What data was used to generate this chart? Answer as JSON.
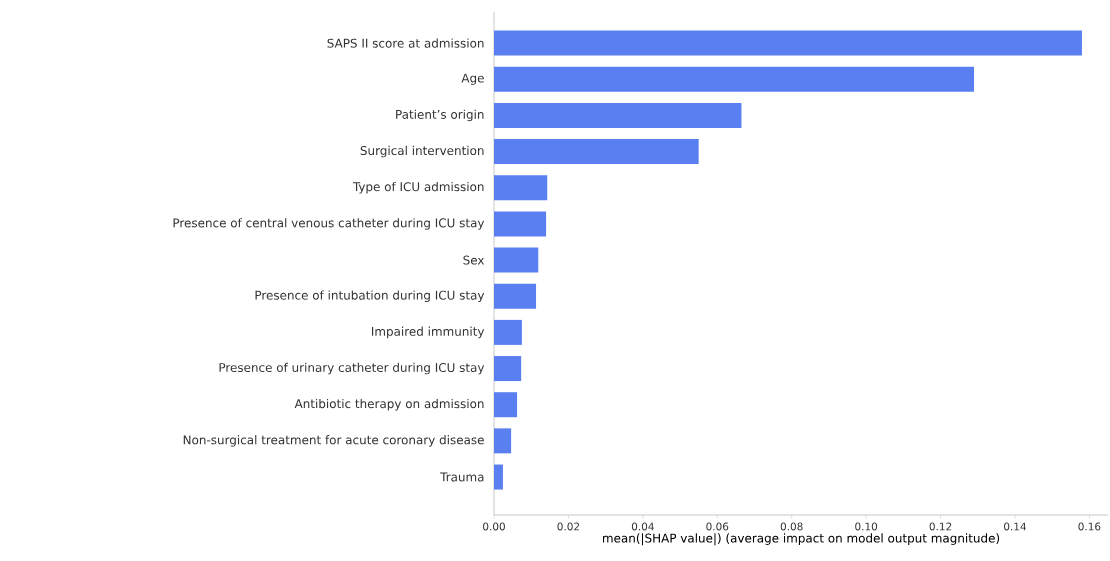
{
  "chart_data": {
    "type": "bar",
    "orientation": "horizontal",
    "xlabel": "mean(|SHAP value|) (average impact on model output magnitude)",
    "categories": [
      "SAPS II score at admission",
      "Age",
      "Patient’s origin",
      "Surgical intervention",
      "Type of ICU admission",
      "Presence of central venous catheter during ICU stay",
      "Sex",
      "Presence of intubation during ICU stay",
      "Impaired immunity",
      "Presence of urinary catheter during ICU stay",
      "Antibiotic therapy on admission",
      "Non-surgical treatment for acute coronary disease",
      "Trauma"
    ],
    "values": [
      0.158,
      0.129,
      0.0665,
      0.055,
      0.0143,
      0.014,
      0.0119,
      0.0113,
      0.0075,
      0.0073,
      0.0062,
      0.0046,
      0.0024
    ],
    "color": "#5a7ff0",
    "xlim": [
      0,
      0.165
    ],
    "xticks": [
      {
        "value": 0,
        "label": "0.00"
      },
      {
        "value": 0.02,
        "label": "0.02"
      },
      {
        "value": 0.04,
        "label": "0.04"
      },
      {
        "value": 0.06,
        "label": "0.06"
      },
      {
        "value": 0.08,
        "label": "0.08"
      },
      {
        "value": 0.1,
        "label": "0.10"
      },
      {
        "value": 0.12,
        "label": "0.12"
      },
      {
        "value": 0.14,
        "label": "0.14"
      },
      {
        "value": 0.16,
        "label": "0.16"
      }
    ]
  }
}
